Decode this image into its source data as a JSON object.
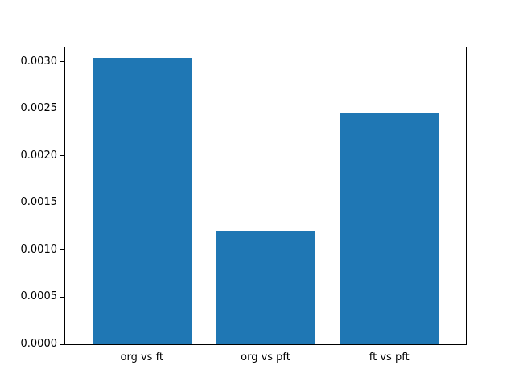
{
  "chart_data": {
    "type": "bar",
    "categories": [
      "org vs ft",
      "org vs pft",
      "ft vs pft"
    ],
    "values": [
      0.00304,
      0.0012,
      0.00245
    ],
    "title": "",
    "xlabel": "",
    "ylabel": "",
    "ylim": [
      0,
      0.00315
    ],
    "xlim": [
      -0.62,
      2.62
    ],
    "bar_width": 0.8,
    "yticks": [
      0,
      0.0005,
      0.001,
      0.0015,
      0.002,
      0.0025,
      0.003
    ],
    "ytick_labels": [
      "0.0000",
      "0.0005",
      "0.0010",
      "0.0015",
      "0.0020",
      "0.0025",
      "0.0030"
    ],
    "bar_color": "#1f77b4",
    "grid": false,
    "legend": "none",
    "background_color": "#ffffff"
  }
}
